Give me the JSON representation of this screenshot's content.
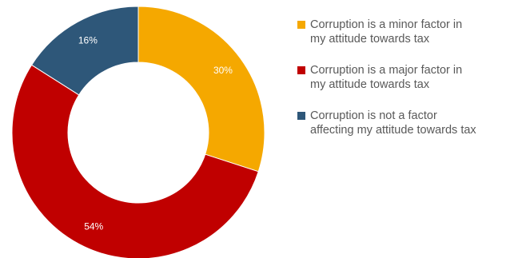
{
  "chart_data": {
    "type": "pie",
    "title": "",
    "donut": true,
    "slices": [
      {
        "label": "Corruption is a minor factor in\nmy attitude towards tax",
        "value": 30,
        "value_label": "30%",
        "color": "#F5A800"
      },
      {
        "label": "Corruption is a major factor in\nmy attitude towards tax",
        "value": 54,
        "value_label": "54%",
        "color": "#C00000"
      },
      {
        "label": "Corruption is not a factor\naffecting my attitude towards tax",
        "value": 16,
        "value_label": "16%",
        "color": "#2E5779"
      }
    ],
    "legend_position": "right",
    "start_angle_deg": 0,
    "direction": "clockwise"
  }
}
